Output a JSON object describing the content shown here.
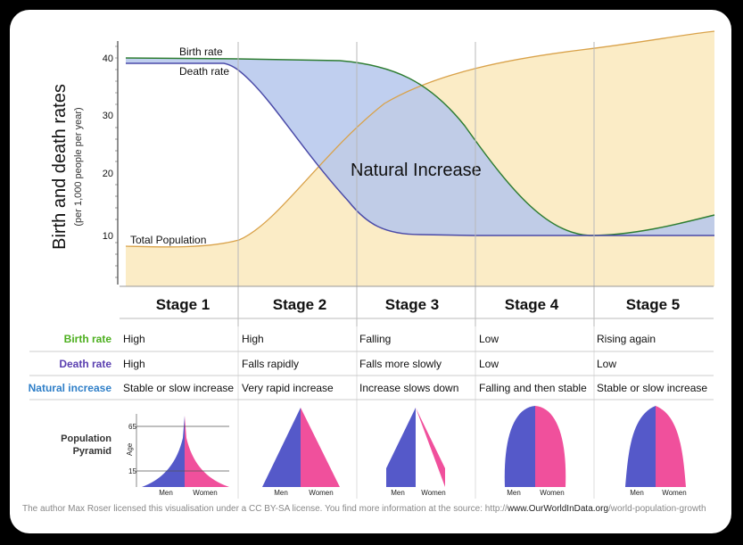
{
  "chart_data": {
    "type": "area",
    "ylabel": "Birth and death rates",
    "ylabel_sub": "(per 1,000 people per year)",
    "yticks": [
      "40",
      "30",
      "20",
      "10"
    ],
    "ylim": [
      0,
      43
    ],
    "series": [
      {
        "name": "Birth rate",
        "color": "#2e7d32"
      },
      {
        "name": "Death rate",
        "color": "#4a4aa8"
      },
      {
        "name": "Total Population",
        "color": "#d9a24a"
      }
    ],
    "annotation": "Natural Increase",
    "stages": [
      "Stage 1",
      "Stage 2",
      "Stage 3",
      "Stage 4",
      "Stage 5"
    ]
  },
  "table": {
    "rows": [
      {
        "label": "Birth rate",
        "color": "#4caf1e",
        "cells": [
          "High",
          "High",
          "Falling",
          "Low",
          "Rising again"
        ]
      },
      {
        "label": "Death rate",
        "color": "#5a3fb0",
        "cells": [
          "High",
          "Falls rapidly",
          "Falls more slowly",
          "Low",
          "Low"
        ]
      },
      {
        "label": "Natural increase",
        "color": "#2f7fc8",
        "cells": [
          "Stable or slow increase",
          "Very rapid increase",
          "Increase slows down",
          "Falling and then stable",
          "Stable or slow increase"
        ]
      }
    ],
    "pyramid_label_1": "Population",
    "pyramid_label_2": "Pyramid",
    "age_label": "Age",
    "age_ticks": [
      "65",
      "15"
    ],
    "men": "Men",
    "women": "Women"
  },
  "credit": {
    "text": "The author Max Roser licensed this visualisation under a CC BY-SA license. You find more information at the source: http://",
    "bold": "www.OurWorldInData.org",
    "tail": "/world-population-growth"
  },
  "colors": {
    "blue_area": "#b5c7ec",
    "tan_area": "#fbecc6",
    "men": "#5559c9",
    "women": "#f0509c"
  }
}
